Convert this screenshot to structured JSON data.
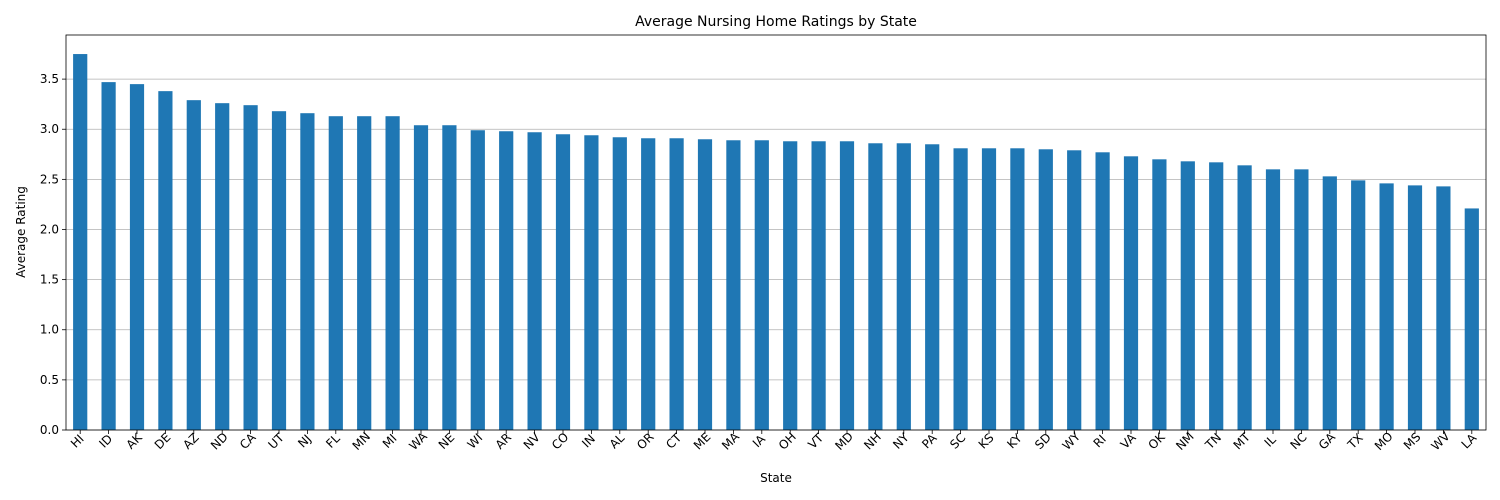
{
  "chart_data": {
    "type": "bar",
    "title": "Average Nursing Home Ratings by State",
    "xlabel": "State",
    "ylabel": "Average Rating",
    "categories": [
      "HI",
      "ID",
      "AK",
      "DE",
      "AZ",
      "ND",
      "CA",
      "UT",
      "NJ",
      "FL",
      "MN",
      "MI",
      "WA",
      "NE",
      "WI",
      "AR",
      "NV",
      "CO",
      "IN",
      "AL",
      "OR",
      "CT",
      "ME",
      "MA",
      "IA",
      "OH",
      "VT",
      "MD",
      "NH",
      "NY",
      "PA",
      "SC",
      "KS",
      "KY",
      "SD",
      "WY",
      "RI",
      "VA",
      "OK",
      "NM",
      "TN",
      "MT",
      "IL",
      "NC",
      "GA",
      "TX",
      "MO",
      "MS",
      "WV",
      "LA"
    ],
    "values": [
      3.75,
      3.47,
      3.45,
      3.38,
      3.29,
      3.26,
      3.24,
      3.18,
      3.16,
      3.13,
      3.13,
      3.13,
      3.04,
      3.04,
      2.99,
      2.98,
      2.97,
      2.95,
      2.94,
      2.92,
      2.91,
      2.91,
      2.9,
      2.89,
      2.89,
      2.88,
      2.88,
      2.88,
      2.86,
      2.86,
      2.85,
      2.81,
      2.81,
      2.81,
      2.8,
      2.79,
      2.77,
      2.73,
      2.7,
      2.68,
      2.67,
      2.64,
      2.6,
      2.6,
      2.53,
      2.49,
      2.46,
      2.44,
      2.43,
      2.21
    ],
    "yticks": [
      "0.0",
      "0.5",
      "1.0",
      "1.5",
      "2.0",
      "2.5",
      "3.0",
      "3.5"
    ],
    "ylim": [
      0,
      3.94
    ],
    "grid": "horizontal",
    "legend": "none",
    "colors": {
      "bar": "#1f77b4",
      "grid": "#b0b0b0",
      "axis": "#000000"
    }
  }
}
